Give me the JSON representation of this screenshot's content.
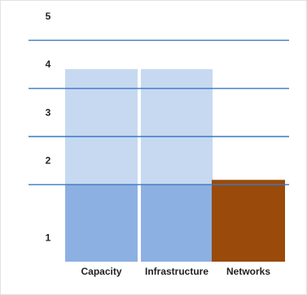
{
  "chart_data": {
    "type": "bar",
    "categories": [
      "Capacity",
      "Infrastructure",
      "Networks"
    ],
    "y_ticks": [
      "1",
      "2",
      "3",
      "4",
      "5"
    ],
    "levels": [
      {
        "from": 0,
        "to": 1.6,
        "fill": "#8db0e2"
      },
      {
        "from": 1.6,
        "to": 4.0,
        "fill": "#c6d9f0"
      }
    ],
    "values": [
      4.0,
      4.0,
      1.7
    ],
    "bar_colors": [
      "#c6d9f0",
      "#c6d9f0",
      "#9a4a0a"
    ],
    "gridlines": [
      1.6,
      2.6,
      3.6,
      4.6
    ],
    "gridline_color": "#3a78c2",
    "ylim": [
      0,
      5.2
    ],
    "grid": true,
    "legend": "none",
    "title": "",
    "xlabel": "",
    "ylabel": ""
  }
}
